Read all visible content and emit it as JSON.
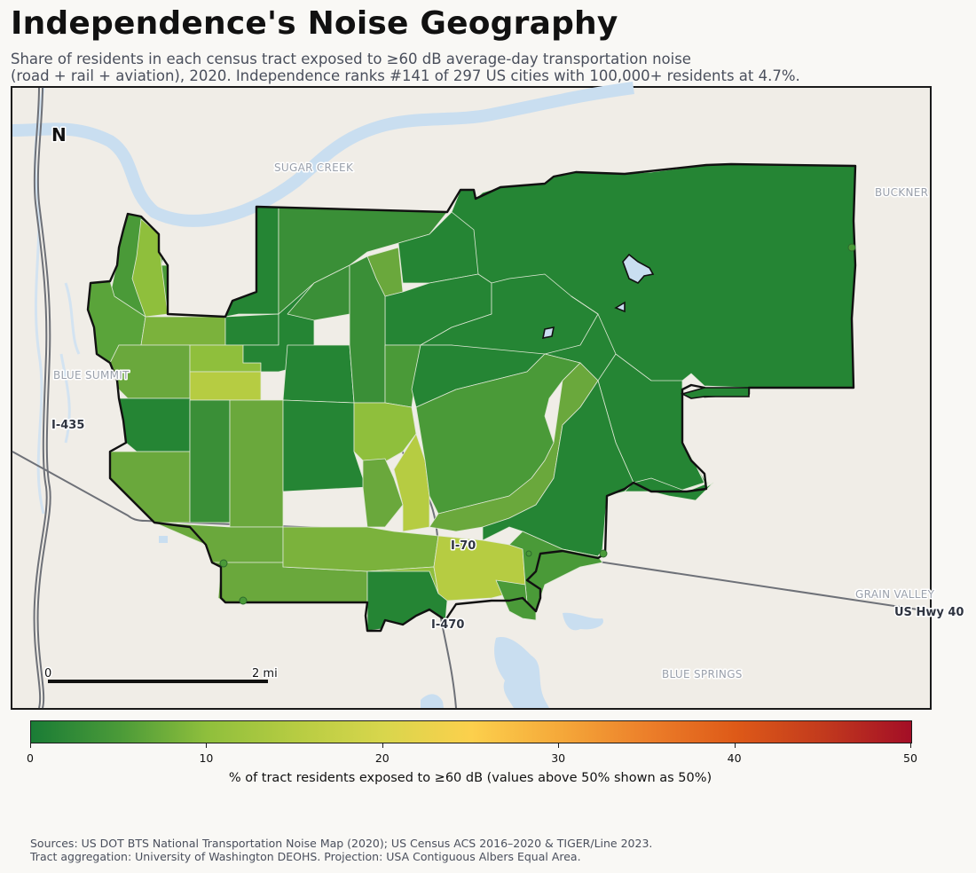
{
  "title": "Independence's Noise Geography",
  "subtitle": {
    "line1": "Share of residents in each census tract exposed to ≥60 dB average-day transportation noise",
    "line2": "(road + rail + aviation), 2020. Independence ranks #141 of 297 US cities with 100,000+ residents at 4.7%."
  },
  "map": {
    "north_label": "N",
    "places": {
      "sugar_creek": "SUGAR CREEK",
      "buckner": "BUCKNER",
      "blue_summit": "BLUE SUMMIT",
      "grain_valley": "GRAIN VALLEY",
      "blue_springs": "BLUE SPRINGS"
    },
    "roads": {
      "i435": "I-435",
      "i70": "I-70",
      "i470": "I-470",
      "us40": "US Hwy 40"
    },
    "scalebar": {
      "start": "0",
      "end": "2 mi"
    },
    "colors": {
      "background": "#f0ede7",
      "water": "#c9def0",
      "road": "#6e7178",
      "boundary": "#111111",
      "tract_outline": "#dfe8d5"
    }
  },
  "colorbar": {
    "min": 0,
    "max": 50,
    "ticks": [
      "0",
      "10",
      "20",
      "30",
      "40",
      "50"
    ],
    "label": "% of tract residents exposed to ≥60 dB (values above 50% shown as 50%)",
    "colors": [
      "#1a7c36",
      "#4a9a38",
      "#8fbf3c",
      "#b6cc42",
      "#fcd04c",
      "#ec7f2a",
      "#a30e26"
    ]
  },
  "source": {
    "line1": "Sources: US DOT BTS National Transportation Noise Map (2020); US Census ACS 2016–2020 & TIGER/Line 2023.",
    "line2": "Tract aggregation: University of Washington DEOHS. Projection: USA Contiguous Albers Equal Area."
  }
}
